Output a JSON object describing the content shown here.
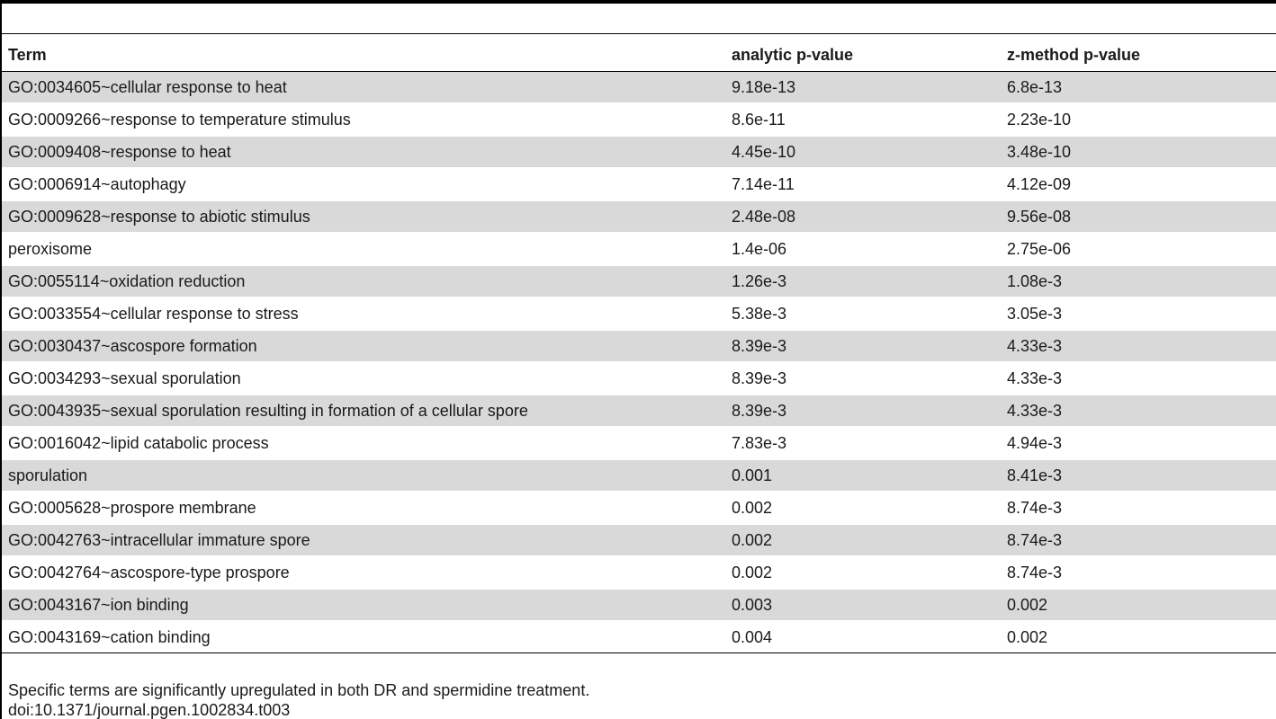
{
  "table": {
    "headers": [
      "Term",
      "analytic p-value",
      "z-method p-value"
    ],
    "rows": [
      [
        "GO:0034605~cellular response to heat",
        "9.18e-13",
        "6.8e-13"
      ],
      [
        "GO:0009266~response to temperature stimulus",
        "8.6e-11",
        "2.23e-10"
      ],
      [
        "GO:0009408~response to heat",
        "4.45e-10",
        "3.48e-10"
      ],
      [
        "GO:0006914~autophagy",
        "7.14e-11",
        "4.12e-09"
      ],
      [
        "GO:0009628~response to abiotic stimulus",
        "2.48e-08",
        "9.56e-08"
      ],
      [
        "peroxisome",
        "1.4e-06",
        "2.75e-06"
      ],
      [
        "GO:0055114~oxidation reduction",
        "1.26e-3",
        "1.08e-3"
      ],
      [
        "GO:0033554~cellular response to stress",
        "5.38e-3",
        "3.05e-3"
      ],
      [
        "GO:0030437~ascospore formation",
        "8.39e-3",
        "4.33e-3"
      ],
      [
        "GO:0034293~sexual sporulation",
        "8.39e-3",
        "4.33e-3"
      ],
      [
        "GO:0043935~sexual sporulation resulting in formation of a cellular spore",
        "8.39e-3",
        "4.33e-3"
      ],
      [
        "GO:0016042~lipid catabolic process",
        "7.83e-3",
        "4.94e-3"
      ],
      [
        "sporulation",
        "0.001",
        "8.41e-3"
      ],
      [
        "GO:0005628~prospore membrane",
        "0.002",
        "8.74e-3"
      ],
      [
        "GO:0042763~intracellular immature spore",
        "0.002",
        "8.74e-3"
      ],
      [
        "GO:0042764~ascospore-type prospore",
        "0.002",
        "8.74e-3"
      ],
      [
        "GO:0043167~ion binding",
        "0.003",
        "0.002"
      ],
      [
        "GO:0043169~cation binding",
        "0.004",
        "0.002"
      ]
    ]
  },
  "footer": {
    "note": "Specific terms are significantly upregulated in both DR and spermidine treatment.",
    "doi": "doi:10.1371/journal.pgen.1002834.t003"
  },
  "colors": {
    "shaded_row": "#d9d9d9",
    "rule": "#000000"
  }
}
